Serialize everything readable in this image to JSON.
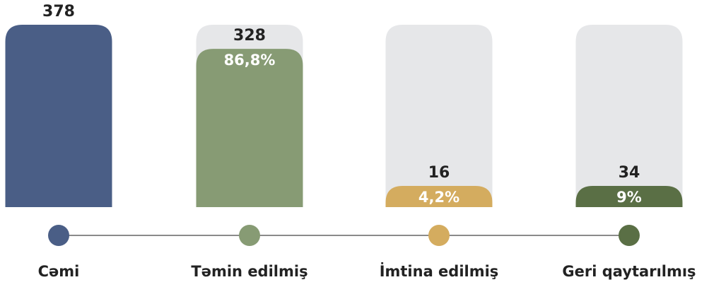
{
  "chart_data": {
    "type": "bar",
    "categories": [
      "Cəmi",
      "Təmin edilmiş",
      "İmtina edilmiş",
      "Geri qaytarılmış"
    ],
    "values": [
      378,
      328,
      16,
      34
    ],
    "percent_labels": [
      null,
      "86,8%",
      "4,2%",
      "9%"
    ],
    "colors": [
      "#4a5e86",
      "#879b74",
      "#d4ac5f",
      "#5a6f45"
    ],
    "ylim": [
      0,
      378
    ]
  }
}
